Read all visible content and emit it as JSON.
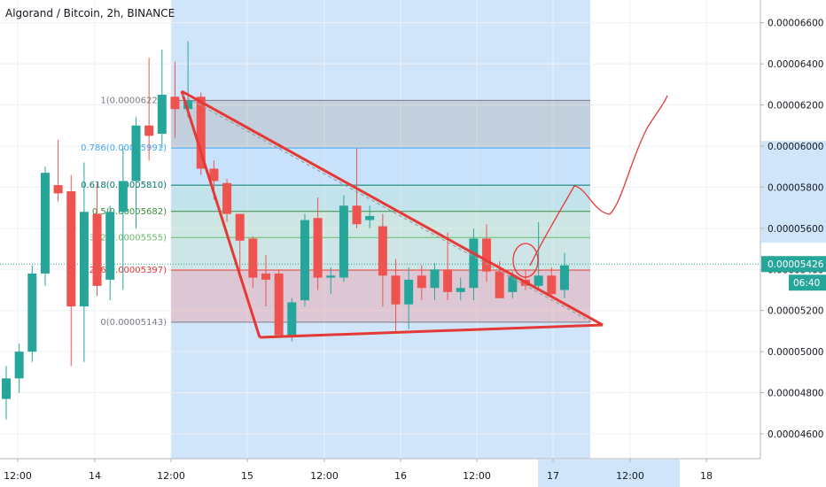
{
  "header": {
    "title": "Algorand / Bitcoin, 2h, BINANCE"
  },
  "price_axis": {
    "ticks": [
      "0.00006600",
      "0.00006400",
      "0.00006200",
      "0.00006000",
      "0.00005800",
      "0.00005600",
      "0.00005400",
      "0.00005200",
      "0.00005000",
      "0.00004800",
      "0.00004600"
    ],
    "tick_values": [
      6.6e-05,
      6.4e-05,
      6.2e-05,
      6e-05,
      5.8e-05,
      5.6e-05,
      5.4e-05,
      5.2e-05,
      5e-05,
      4.8e-05,
      4.6e-05
    ],
    "last_price": "0.00005426",
    "last_price_value": 5.426e-05,
    "countdown": "06:40"
  },
  "time_axis": {
    "ticks": [
      "12:00",
      "14",
      "12:00",
      "15",
      "12:00",
      "16",
      "12:00",
      "17",
      "12:00",
      "18"
    ],
    "highlight_index": 7
  },
  "fib_levels": [
    {
      "label": "1(0.00006222)",
      "value": 6.222e-05,
      "color": "#787b86"
    },
    {
      "label": "0.786(0.00005991)",
      "value": 5.991e-05,
      "color": "#42a5f5"
    },
    {
      "label": "0.618(0.00005810)",
      "value": 5.81e-05,
      "color": "#00796b"
    },
    {
      "label": "0.5(0.00005682)",
      "value": 5.682e-05,
      "color": "#388e3c"
    },
    {
      "label": "0.382(0.00005555)",
      "value": 5.555e-05,
      "color": "#66bb6a"
    },
    {
      "label": "0.236(0.00005397)",
      "value": 5.397e-05,
      "color": "#e53935"
    },
    {
      "label": "0(0.00005143)",
      "value": 5.143e-05,
      "color": "#787b86"
    }
  ],
  "colors": {
    "up": "#26a69a",
    "down": "#ef5350",
    "drawing": "#e53935",
    "grid": "#eef0f3"
  },
  "chart_data": {
    "type": "candlestick",
    "title": "Algorand / Bitcoin, 2h, BINANCE",
    "ylim": [
      4.51e-05,
      6.71e-05
    ],
    "candles": [
      {
        "o": 4.77e-05,
        "h": 4.93e-05,
        "l": 4.67e-05,
        "c": 4.87e-05
      },
      {
        "o": 4.87e-05,
        "h": 5.04e-05,
        "l": 4.8e-05,
        "c": 5e-05
      },
      {
        "o": 5e-05,
        "h": 5.42e-05,
        "l": 4.95e-05,
        "c": 5.38e-05
      },
      {
        "o": 5.38e-05,
        "h": 5.9e-05,
        "l": 5.32e-05,
        "c": 5.87e-05
      },
      {
        "o": 5.81e-05,
        "h": 6.03e-05,
        "l": 5.73e-05,
        "c": 5.77e-05
      },
      {
        "o": 5.78e-05,
        "h": 5.86e-05,
        "l": 4.93e-05,
        "c": 5.22e-05
      },
      {
        "o": 5.22e-05,
        "h": 5.92e-05,
        "l": 4.95e-05,
        "c": 5.68e-05
      },
      {
        "o": 5.67e-05,
        "h": 5.82e-05,
        "l": 5.27e-05,
        "c": 5.32e-05
      },
      {
        "o": 5.35e-05,
        "h": 5.71e-05,
        "l": 5.25e-05,
        "c": 5.68e-05
      },
      {
        "o": 5.68e-05,
        "h": 5.99e-05,
        "l": 5.3e-05,
        "c": 5.83e-05
      },
      {
        "o": 5.83e-05,
        "h": 6.14e-05,
        "l": 5.6e-05,
        "c": 6.1e-05
      },
      {
        "o": 6.1e-05,
        "h": 6.43e-05,
        "l": 5.93e-05,
        "c": 6.05e-05
      },
      {
        "o": 6.06e-05,
        "h": 6.47e-05,
        "l": 5.99e-05,
        "c": 6.25e-05
      },
      {
        "o": 6.24e-05,
        "h": 6.41e-05,
        "l": 6.04e-05,
        "c": 6.18e-05
      },
      {
        "o": 6.18e-05,
        "h": 6.51e-05,
        "l": 6.14e-05,
        "c": 6.22e-05
      },
      {
        "o": 6.24e-05,
        "h": 6.26e-05,
        "l": 5.86e-05,
        "c": 5.89e-05
      },
      {
        "o": 5.89e-05,
        "h": 5.93e-05,
        "l": 5.74e-05,
        "c": 5.83e-05
      },
      {
        "o": 5.82e-05,
        "h": 5.84e-05,
        "l": 5.63e-05,
        "c": 5.67e-05
      },
      {
        "o": 5.67e-05,
        "h": 5.67e-05,
        "l": 5.36e-05,
        "c": 5.54e-05
      },
      {
        "o": 5.55e-05,
        "h": 5.56e-05,
        "l": 5.31e-05,
        "c": 5.36e-05
      },
      {
        "o": 5.38e-05,
        "h": 5.47e-05,
        "l": 5.22e-05,
        "c": 5.35e-05
      },
      {
        "o": 5.38e-05,
        "h": 5.4e-05,
        "l": 5.07e-05,
        "c": 5.08e-05
      },
      {
        "o": 5.08e-05,
        "h": 5.26e-05,
        "l": 5.05e-05,
        "c": 5.24e-05
      },
      {
        "o": 5.25e-05,
        "h": 5.67e-05,
        "l": 5.22e-05,
        "c": 5.64e-05
      },
      {
        "o": 5.65e-05,
        "h": 5.75e-05,
        "l": 5.3e-05,
        "c": 5.36e-05
      },
      {
        "o": 5.36e-05,
        "h": 5.41e-05,
        "l": 5.28e-05,
        "c": 5.37e-05
      },
      {
        "o": 5.36e-05,
        "h": 5.76e-05,
        "l": 5.34e-05,
        "c": 5.71e-05
      },
      {
        "o": 5.71e-05,
        "h": 5.99e-05,
        "l": 5.6e-05,
        "c": 5.62e-05
      },
      {
        "o": 5.64e-05,
        "h": 5.71e-05,
        "l": 5.6e-05,
        "c": 5.66e-05
      },
      {
        "o": 5.61e-05,
        "h": 5.67e-05,
        "l": 5.22e-05,
        "c": 5.37e-05
      },
      {
        "o": 5.37e-05,
        "h": 5.45e-05,
        "l": 5.09e-05,
        "c": 5.23e-05
      },
      {
        "o": 5.23e-05,
        "h": 5.41e-05,
        "l": 5.11e-05,
        "c": 5.35e-05
      },
      {
        "o": 5.37e-05,
        "h": 5.42e-05,
        "l": 5.25e-05,
        "c": 5.31e-05
      },
      {
        "o": 5.31e-05,
        "h": 5.43e-05,
        "l": 5.25e-05,
        "c": 5.4e-05
      },
      {
        "o": 5.4e-05,
        "h": 5.58e-05,
        "l": 5.25e-05,
        "c": 5.29e-05
      },
      {
        "o": 5.29e-05,
        "h": 5.36e-05,
        "l": 5.25e-05,
        "c": 5.31e-05
      },
      {
        "o": 5.31e-05,
        "h": 5.6e-05,
        "l": 5.25e-05,
        "c": 5.55e-05
      },
      {
        "o": 5.55e-05,
        "h": 5.62e-05,
        "l": 5.34e-05,
        "c": 5.39e-05
      },
      {
        "o": 5.39e-05,
        "h": 5.44e-05,
        "l": 5.26e-05,
        "c": 5.26e-05
      },
      {
        "o": 5.29e-05,
        "h": 5.39e-05,
        "l": 5.26e-05,
        "c": 5.37e-05
      },
      {
        "o": 5.35e-05,
        "h": 5.4e-05,
        "l": 5.3e-05,
        "c": 5.32e-05
      },
      {
        "o": 5.32e-05,
        "h": 5.63e-05,
        "l": 5.3e-05,
        "c": 5.37e-05
      },
      {
        "o": 5.37e-05,
        "h": 5.41e-05,
        "l": 5.27e-05,
        "c": 5.28e-05
      },
      {
        "o": 5.3e-05,
        "h": 5.48e-05,
        "l": 5.26e-05,
        "c": 5.42e-05
      }
    ]
  }
}
